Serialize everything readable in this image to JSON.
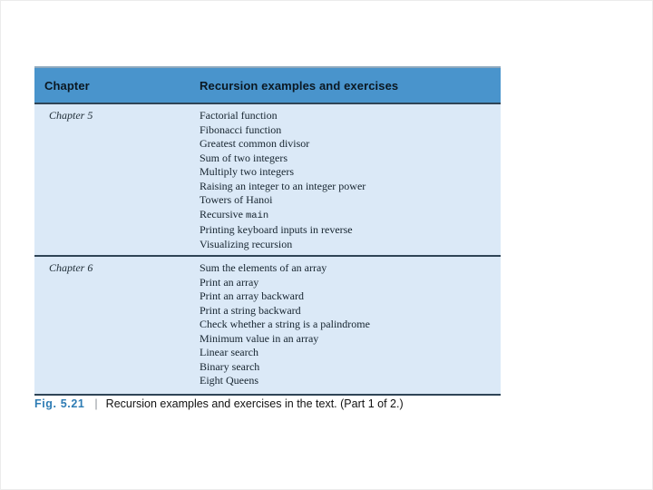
{
  "table": {
    "header": {
      "col1": "Chapter",
      "col2": "Recursion examples and exercises"
    },
    "rows": [
      {
        "chapter": "Chapter 5",
        "items": [
          "Factorial function",
          "Fibonacci function",
          "Greatest common divisor",
          "Sum of two integers",
          "Multiply two integers",
          "Raising an integer to an integer power",
          "Towers of Hanoi",
          "Recursive `main`",
          "Printing keyboard inputs in reverse",
          "Visualizing recursion"
        ]
      },
      {
        "chapter": "Chapter 6",
        "items": [
          "Sum the elements of an array",
          "Print an array",
          "Print an array backward",
          "Print a string backward",
          "Check whether a string is a palindrome",
          "Minimum value in an array",
          "Linear search",
          "Binary search",
          "Eight Queens"
        ]
      }
    ]
  },
  "caption": {
    "fig_label": "Fig. 5.21",
    "separator": "|",
    "text": "Recursion examples and exercises in the text. (Part 1 of 2.)"
  },
  "colors": {
    "header_bg": "#4994cc",
    "body_bg": "#dbe9f7",
    "rule_dark": "#2f4456",
    "rule_top": "#8fa9be",
    "fig_label_color": "#2e7cb4"
  }
}
